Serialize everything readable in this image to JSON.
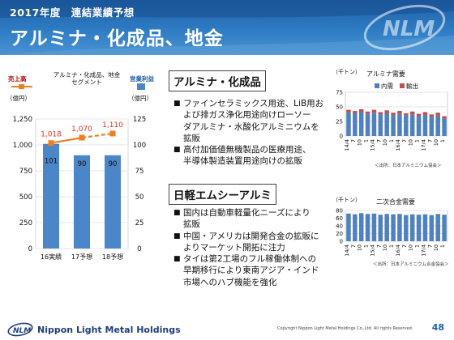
{
  "header": {
    "subtitle": "2017年度　連結業績予想",
    "title": "アルミナ・化成品、地金",
    "logo_text": "NLM"
  },
  "left_chart_labels": {
    "sales_label": "売上高",
    "segment_label_1": "アルミナ・化成品、地金",
    "segment_label_2": "セグメント",
    "profit_label": "営業利益",
    "unit_left": "（億円）",
    "unit_right": "（億円）"
  },
  "section1": {
    "title": "アルミナ・化成品",
    "bullets": [
      "ファインセラミックス用途、LiB用お",
      "よび排ガス浄化用途向けローソー",
      "ダアルミナ・水酸化アルミニウムを",
      "拡販",
      "高付加価値無機製品の医療用途、",
      "半導体製造装置用途向けの拡販"
    ]
  },
  "section2": {
    "title": "日軽エムシーアルミ",
    "bullets": [
      "国内は自動車軽量化ニーズにより",
      "拡販",
      "中国・アメリカは開発合金の拡販に",
      "よりマーケット開拓に注力",
      "タイは第2工場のフル稼働体制への",
      "早期移行により東南アジア・インド",
      "市場へのハブ機能を強化"
    ]
  },
  "alumina_chart_text": {
    "unit": "（千トン）",
    "title": "アルミナ需要",
    "legend_domestic": "内需",
    "legend_export": "輸出",
    "source": "＜出所：日本アルミニウム協会＞"
  },
  "alloy_chart_text": {
    "unit": "（千トン）",
    "title": "二次合金需要",
    "source": "＜出所：日本アルミニウム合金協会＞"
  },
  "footer": {
    "company": "Nippon Light Metal Holdings",
    "copyright": "Copyright Nippon Light Metal Holdings Co.,Ltd. All rights Reserved.",
    "page": "48"
  },
  "chart_data": [
    {
      "type": "bar",
      "categories": [
        "16実績",
        "17予想",
        "18予想"
      ],
      "series": [
        {
          "name": "営業利益",
          "values": [
            101,
            90,
            90
          ]
        }
      ],
      "line_series": [
        {
          "name": "売上高",
          "values": [
            1018,
            1070,
            1110
          ]
        }
      ],
      "left_ticks": [
        "1,250",
        "1,000",
        "750",
        "500",
        "250",
        "0"
      ],
      "right_ticks": [
        "125",
        "100",
        "75",
        "50",
        "25",
        "0"
      ],
      "ylim_left": [
        0,
        1250
      ],
      "ylim_right": [
        0,
        125
      ],
      "bar_labels": [
        "101",
        "90",
        "90"
      ],
      "line_labels": [
        "1,018",
        "1,070",
        "1,110"
      ],
      "colors": {
        "bar": "#4a86c8",
        "line": "#ef7d22",
        "line_label": "#e03020"
      }
    },
    {
      "type": "bar",
      "title": "アルミナ需要",
      "categories": [
        "14/4",
        "7",
        "10",
        "1",
        "15/4",
        "7",
        "10",
        "1",
        "16/4",
        "7",
        "10",
        "1",
        "17/4",
        "7",
        "10",
        "1"
      ],
      "series": [
        {
          "name": "内需",
          "values": [
            40,
            39,
            41,
            38,
            40,
            37,
            39,
            36,
            38,
            35,
            37,
            34,
            36,
            33,
            35,
            30
          ]
        },
        {
          "name": "輸出",
          "values": [
            5,
            4,
            5,
            4,
            5,
            4,
            5,
            4,
            5,
            4,
            5,
            4,
            5,
            4,
            5,
            4
          ]
        }
      ],
      "y_ticks": [
        "75",
        "50",
        "25",
        "0"
      ],
      "ylim": [
        0,
        75
      ],
      "colors": {
        "domestic": "#4f81bd",
        "export": "#c0504d"
      }
    },
    {
      "type": "bar",
      "title": "二次合金需要",
      "categories": [
        "14/4",
        "7",
        "10",
        "1",
        "15/4",
        "7",
        "10",
        "1",
        "16/4",
        "7",
        "10",
        "1",
        "17/4",
        "7",
        "10",
        "1"
      ],
      "series": [
        {
          "name": "二次合金",
          "values": [
            72,
            70,
            73,
            71,
            72,
            69,
            71,
            70,
            71,
            68,
            70,
            69,
            70,
            68,
            71,
            69
          ]
        }
      ],
      "y_ticks": [
        "80",
        "60",
        "40",
        "20",
        "0"
      ],
      "ylim": [
        0,
        80
      ],
      "colors": {
        "bar": "#4f81bd"
      }
    }
  ]
}
